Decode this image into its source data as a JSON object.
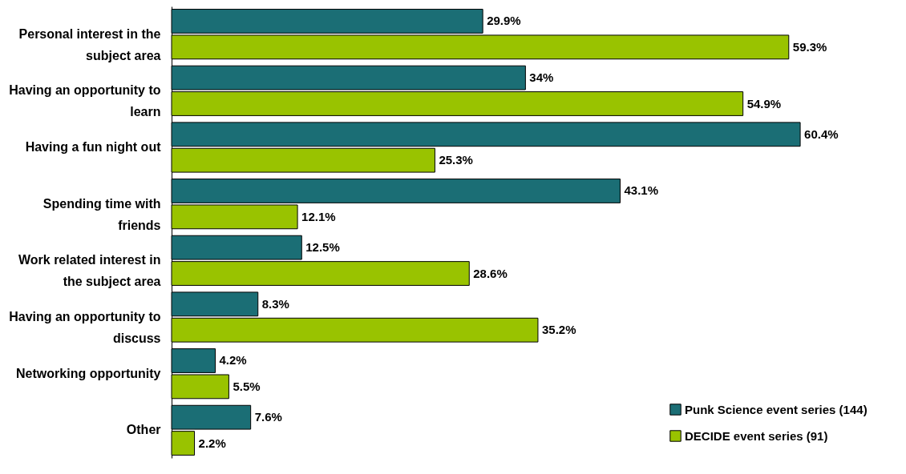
{
  "chart_data": {
    "type": "bar",
    "orientation": "horizontal",
    "categories": [
      "Personal interest in the subject area",
      "Having an opportunity to learn",
      "Having a fun night out",
      "Spending time with friends",
      "Work related interest in the subject area",
      "Having an opportunity to discuss",
      "Networking opportunity",
      "Other"
    ],
    "series": [
      {
        "name": "Punk Science event series (144)",
        "color": "#1b6e75",
        "values": [
          29.9,
          34,
          60.4,
          43.1,
          12.5,
          8.3,
          4.2,
          7.6
        ],
        "value_labels": [
          "29.9%",
          "34%",
          "60.4%",
          "43.1%",
          "12.5%",
          "8.3%",
          "4.2%",
          "7.6%"
        ]
      },
      {
        "name": "DECIDE event series (91)",
        "color": "#99c300",
        "values": [
          59.3,
          54.9,
          25.3,
          12.1,
          28.6,
          35.2,
          5.5,
          2.2
        ],
        "value_labels": [
          "59.3%",
          "54.9%",
          "25.3%",
          "12.1%",
          "28.6%",
          "35.2%",
          "5.5%",
          "2.2%"
        ]
      }
    ],
    "legend": "bottom right",
    "grid": false
  }
}
